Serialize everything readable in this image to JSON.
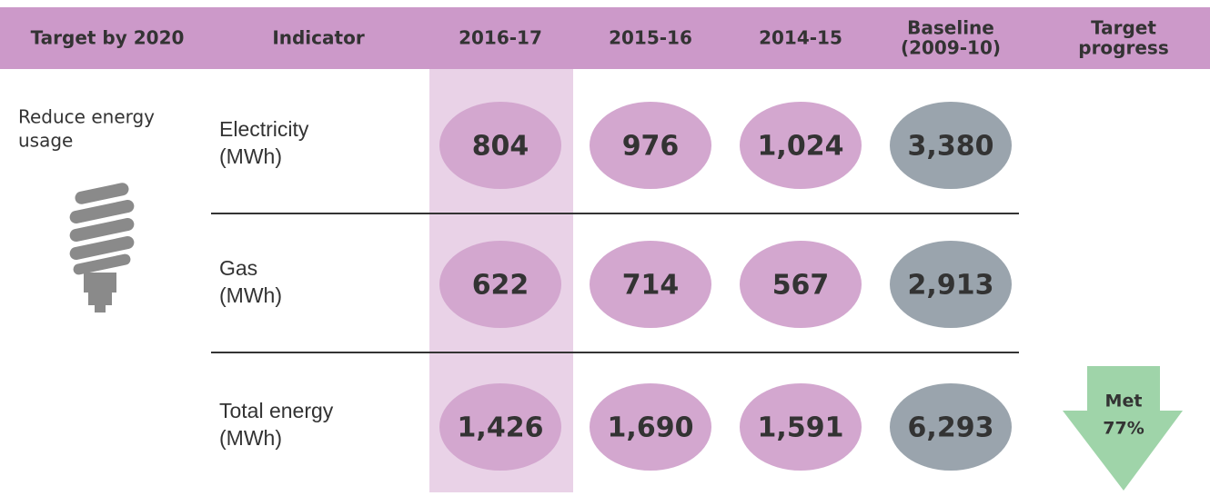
{
  "header": [
    [
      "Target by 2020"
    ],
    [
      "Indicator"
    ],
    [
      "2016-17"
    ],
    [
      "2015-16"
    ],
    [
      "2014-15"
    ],
    [
      "Baseline",
      "(2009-10)"
    ],
    [
      "Target",
      "progress"
    ]
  ],
  "target": [
    "Reduce energy",
    "usage"
  ],
  "rows": [
    {
      "indicator": [
        "Electricity",
        "(MWh)"
      ],
      "values": [
        "804",
        "976",
        "1,024",
        "3,380"
      ]
    },
    {
      "indicator": [
        "Gas",
        "(MWh)"
      ],
      "values": [
        "622",
        "714",
        "567",
        "2,913"
      ]
    },
    {
      "indicator": [
        "Total energy",
        "(MWh)"
      ],
      "values": [
        "1,426",
        "1,690",
        "1,591",
        "6,293"
      ]
    }
  ],
  "progress": [
    "Met",
    "77%"
  ]
}
